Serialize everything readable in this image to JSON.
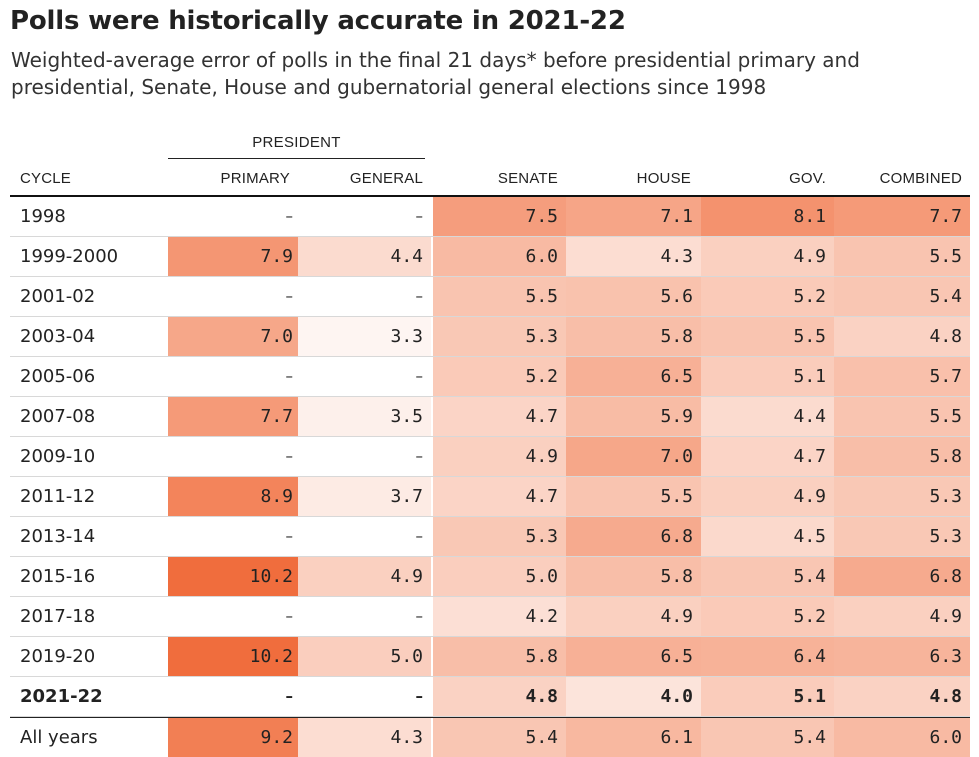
{
  "title": "Polls were historically accurate in 2021-22",
  "subtitle": "Weighted-average error of polls in the final 21 days* before presidential primary and presidential, Senate, House and gubernatorial general elections since 1998",
  "group_label": "PRESIDENT",
  "columns": [
    "CYCLE",
    "PRIMARY",
    "GENERAL",
    "SENATE",
    "HOUSE",
    "GOV.",
    "COMBINED"
  ],
  "colors": {
    "scale_low": "#ffffff",
    "scale_high": "#f06a38",
    "rule": "#222222"
  },
  "chart_data": {
    "type": "table",
    "title": "Polls were historically accurate in 2021-22",
    "color_scale": {
      "min": 3.0,
      "max": 10.4
    },
    "rows": [
      {
        "cycle": "1998",
        "values": [
          "–",
          "–",
          "7.5",
          "7.1",
          "8.1",
          "7.7"
        ]
      },
      {
        "cycle": "1999-2000",
        "values": [
          "7.9",
          "4.4",
          "6.0",
          "4.3",
          "4.9",
          "5.5"
        ]
      },
      {
        "cycle": "2001-02",
        "values": [
          "–",
          "–",
          "5.5",
          "5.6",
          "5.2",
          "5.4"
        ]
      },
      {
        "cycle": "2003-04",
        "values": [
          "7.0",
          "3.3",
          "5.3",
          "5.8",
          "5.5",
          "4.8"
        ]
      },
      {
        "cycle": "2005-06",
        "values": [
          "–",
          "–",
          "5.2",
          "6.5",
          "5.1",
          "5.7"
        ]
      },
      {
        "cycle": "2007-08",
        "values": [
          "7.7",
          "3.5",
          "4.7",
          "5.9",
          "4.4",
          "5.5"
        ]
      },
      {
        "cycle": "2009-10",
        "values": [
          "–",
          "–",
          "4.9",
          "7.0",
          "4.7",
          "5.8"
        ]
      },
      {
        "cycle": "2011-12",
        "values": [
          "8.9",
          "3.7",
          "4.7",
          "5.5",
          "4.9",
          "5.3"
        ]
      },
      {
        "cycle": "2013-14",
        "values": [
          "–",
          "–",
          "5.3",
          "6.8",
          "4.5",
          "5.3"
        ]
      },
      {
        "cycle": "2015-16",
        "values": [
          "10.2",
          "4.9",
          "5.0",
          "5.8",
          "5.4",
          "6.8"
        ]
      },
      {
        "cycle": "2017-18",
        "values": [
          "–",
          "–",
          "4.2",
          "4.9",
          "5.2",
          "4.9"
        ]
      },
      {
        "cycle": "2019-20",
        "values": [
          "10.2",
          "5.0",
          "5.8",
          "6.5",
          "6.4",
          "6.3"
        ]
      },
      {
        "cycle": "2021-22",
        "values": [
          "–",
          "–",
          "4.8",
          "4.0",
          "5.1",
          "4.8"
        ],
        "bold": true
      },
      {
        "cycle": "All years",
        "values": [
          "9.2",
          "4.3",
          "5.4",
          "6.1",
          "5.4",
          "6.0"
        ],
        "total": true
      }
    ]
  }
}
